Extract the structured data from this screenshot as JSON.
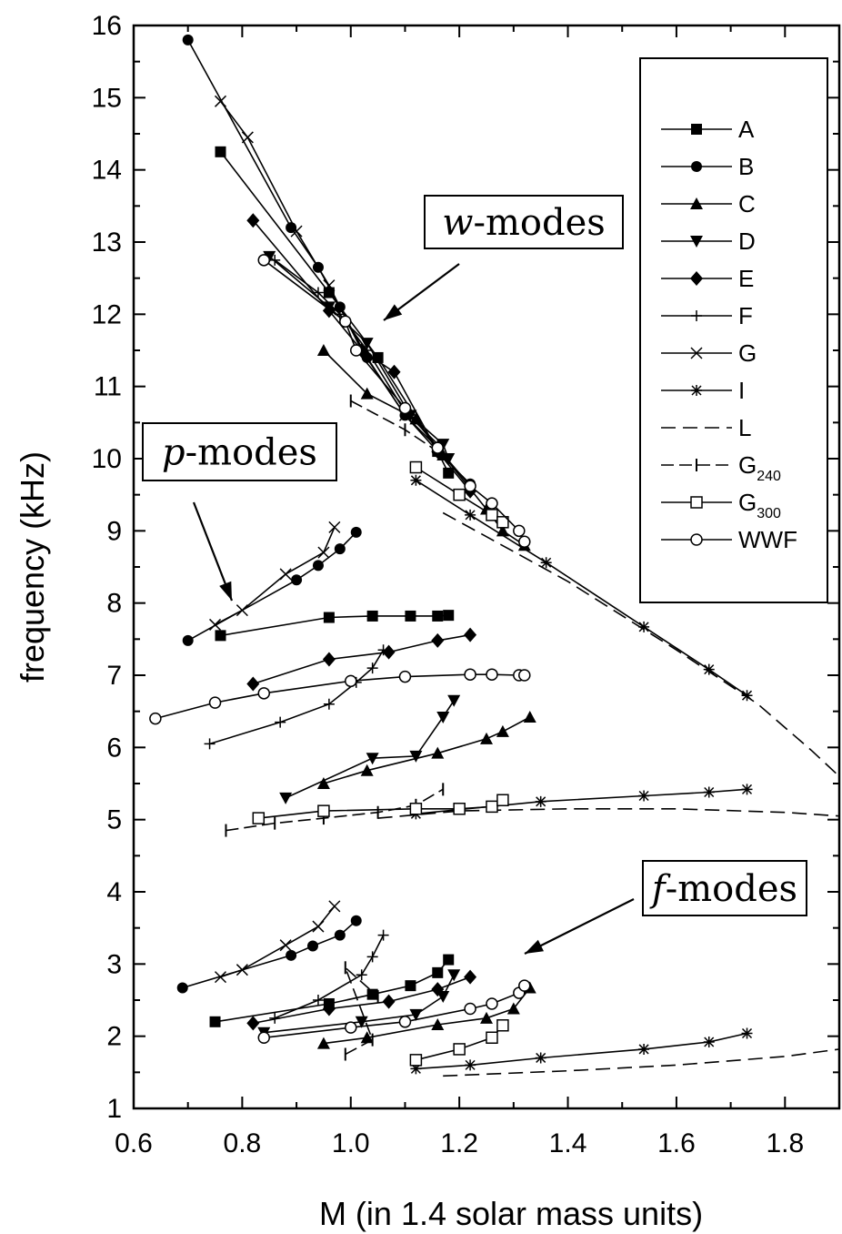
{
  "chart_data": {
    "type": "line",
    "xlabel": "M (in 1.4 solar mass units)",
    "ylabel": "frequency (kHz)",
    "xlim": [
      0.6,
      1.9
    ],
    "ylim": [
      1,
      16
    ],
    "xticks": [
      "0.6",
      "0.8",
      "1.0",
      "1.2",
      "1.4",
      "1.6",
      "1.8"
    ],
    "yticks": [
      "1",
      "2",
      "3",
      "4",
      "5",
      "6",
      "7",
      "8",
      "9",
      "10",
      "11",
      "12",
      "13",
      "14",
      "15",
      "16"
    ],
    "grid": false,
    "legend_position": "top-right",
    "legend": [
      {
        "label": "A",
        "marker": "square-filled"
      },
      {
        "label": "B",
        "marker": "circle-filled"
      },
      {
        "label": "C",
        "marker": "triangle-up-filled"
      },
      {
        "label": "D",
        "marker": "triangle-down-filled"
      },
      {
        "label": "E",
        "marker": "diamond-filled"
      },
      {
        "label": "F",
        "marker": "plus"
      },
      {
        "label": "G",
        "marker": "cross"
      },
      {
        "label": "I",
        "marker": "asterisk"
      },
      {
        "label": "L",
        "marker": "none"
      },
      {
        "label": "G",
        "sub": "240",
        "marker": "vbar"
      },
      {
        "label": "G",
        "sub": "300",
        "marker": "square-open"
      },
      {
        "label": "WWF",
        "marker": "circle-open"
      }
    ],
    "annotations": [
      {
        "label": "w",
        "suffix": "-modes"
      },
      {
        "label": "p",
        "suffix": "-modes"
      },
      {
        "label": "f",
        "suffix": "-modes"
      }
    ],
    "series": [
      {
        "name": "A",
        "marker": "square-filled",
        "curves": [
          [
            [
              0.76,
              14.25
            ],
            [
              0.96,
              12.3
            ],
            [
              1.05,
              11.4
            ],
            [
              1.16,
              10.1
            ],
            [
              1.18,
              9.8
            ]
          ],
          [
            [
              0.76,
              7.55
            ],
            [
              0.96,
              7.8
            ],
            [
              1.04,
              7.82
            ],
            [
              1.11,
              7.82
            ],
            [
              1.16,
              7.82
            ],
            [
              1.18,
              7.83
            ]
          ],
          [
            [
              0.75,
              2.2
            ],
            [
              0.96,
              2.45
            ],
            [
              1.04,
              2.58
            ],
            [
              1.11,
              2.7
            ],
            [
              1.16,
              2.88
            ],
            [
              1.18,
              3.06
            ]
          ]
        ]
      },
      {
        "name": "B",
        "marker": "circle-filled",
        "curves": [
          [
            [
              0.7,
              15.8
            ],
            [
              0.89,
              13.2
            ],
            [
              0.94,
              12.65
            ],
            [
              0.98,
              12.1
            ],
            [
              1.03,
              11.4
            ],
            [
              1.1,
              10.6
            ],
            [
              1.16,
              10.1
            ],
            [
              1.22,
              9.65
            ]
          ],
          [
            [
              0.7,
              7.48
            ],
            [
              0.9,
              8.32
            ],
            [
              0.94,
              8.52
            ],
            [
              0.98,
              8.75
            ],
            [
              1.01,
              8.98
            ]
          ],
          [
            [
              0.69,
              2.67
            ],
            [
              0.89,
              3.12
            ],
            [
              0.93,
              3.25
            ],
            [
              0.98,
              3.4
            ],
            [
              1.01,
              3.6
            ]
          ]
        ]
      },
      {
        "name": "C",
        "marker": "triangle-up-filled",
        "curves": [
          [
            [
              0.95,
              11.5
            ],
            [
              1.03,
              10.9
            ],
            [
              1.12,
              10.55
            ],
            [
              1.17,
              10.05
            ],
            [
              1.25,
              9.3
            ],
            [
              1.28,
              9.0
            ],
            [
              1.32,
              8.8
            ]
          ],
          [
            [
              0.95,
              5.5
            ],
            [
              1.03,
              5.68
            ],
            [
              1.16,
              5.92
            ],
            [
              1.25,
              6.12
            ],
            [
              1.28,
              6.22
            ],
            [
              1.33,
              6.42
            ]
          ],
          [
            [
              0.95,
              1.9
            ],
            [
              1.03,
              1.98
            ],
            [
              1.16,
              2.16
            ],
            [
              1.25,
              2.25
            ],
            [
              1.3,
              2.38
            ],
            [
              1.33,
              2.67
            ]
          ]
        ]
      },
      {
        "name": "D",
        "marker": "triangle-down-filled",
        "curves": [
          [
            [
              0.85,
              12.8
            ],
            [
              0.96,
              12.1
            ],
            [
              1.03,
              11.6
            ],
            [
              1.11,
              10.6
            ],
            [
              1.17,
              10.2
            ],
            [
              1.18,
              10.0
            ]
          ],
          [
            [
              0.88,
              5.3
            ],
            [
              1.04,
              5.85
            ],
            [
              1.12,
              5.88
            ],
            [
              1.17,
              6.42
            ],
            [
              1.19,
              6.65
            ]
          ],
          [
            [
              0.84,
              2.05
            ],
            [
              1.02,
              2.2
            ],
            [
              1.12,
              2.3
            ],
            [
              1.17,
              2.55
            ],
            [
              1.19,
              2.85
            ]
          ]
        ]
      },
      {
        "name": "E",
        "marker": "diamond-filled",
        "curves": [
          [
            [
              0.82,
              13.3
            ],
            [
              0.96,
              12.05
            ],
            [
              1.02,
              11.5
            ],
            [
              1.08,
              11.2
            ],
            [
              1.16,
              10.1
            ],
            [
              1.22,
              9.55
            ]
          ],
          [
            [
              0.82,
              6.88
            ],
            [
              0.96,
              7.22
            ],
            [
              1.07,
              7.32
            ],
            [
              1.16,
              7.48
            ],
            [
              1.22,
              7.56
            ]
          ],
          [
            [
              0.82,
              2.18
            ],
            [
              0.96,
              2.38
            ],
            [
              1.07,
              2.48
            ],
            [
              1.16,
              2.65
            ],
            [
              1.22,
              2.82
            ]
          ]
        ]
      },
      {
        "name": "F",
        "marker": "plus",
        "curves": [
          [
            [
              0.86,
              12.75
            ],
            [
              0.94,
              12.3
            ],
            [
              0.98,
              12.0
            ],
            [
              1.03,
              11.5
            ],
            [
              1.1,
              10.65
            ],
            [
              1.16,
              10.2
            ]
          ],
          [
            [
              0.74,
              6.05
            ],
            [
              0.87,
              6.35
            ],
            [
              0.96,
              6.6
            ],
            [
              1.01,
              6.9
            ],
            [
              1.04,
              7.1
            ],
            [
              1.06,
              7.35
            ]
          ],
          [
            [
              0.86,
              2.25
            ],
            [
              0.94,
              2.5
            ],
            [
              1.02,
              2.85
            ],
            [
              1.04,
              3.1
            ],
            [
              1.06,
              3.4
            ]
          ]
        ]
      },
      {
        "name": "G",
        "marker": "cross",
        "curves": [
          [
            [
              0.76,
              14.95
            ],
            [
              0.81,
              14.45
            ],
            [
              0.9,
              13.15
            ],
            [
              0.96,
              12.4
            ],
            [
              1.02,
              11.5
            ],
            [
              1.1,
              10.6
            ],
            [
              1.16,
              10.15
            ]
          ],
          [
            [
              0.75,
              7.7
            ],
            [
              0.8,
              7.9
            ],
            [
              0.88,
              8.4
            ],
            [
              0.95,
              8.7
            ],
            [
              0.97,
              9.05
            ]
          ],
          [
            [
              0.76,
              2.82
            ],
            [
              0.8,
              2.92
            ],
            [
              0.88,
              3.26
            ],
            [
              0.94,
              3.52
            ],
            [
              0.97,
              3.8
            ]
          ]
        ]
      },
      {
        "name": "I",
        "marker": "asterisk",
        "curves": [
          [
            [
              1.12,
              9.7
            ],
            [
              1.22,
              9.22
            ],
            [
              1.36,
              8.56
            ],
            [
              1.54,
              7.67
            ],
            [
              1.66,
              7.08
            ],
            [
              1.73,
              6.72
            ]
          ],
          [
            [
              1.12,
              5.08
            ],
            [
              1.35,
              5.25
            ],
            [
              1.54,
              5.33
            ],
            [
              1.66,
              5.38
            ],
            [
              1.73,
              5.42
            ]
          ],
          [
            [
              1.12,
              1.55
            ],
            [
              1.22,
              1.6
            ],
            [
              1.35,
              1.7
            ],
            [
              1.54,
              1.82
            ],
            [
              1.66,
              1.92
            ],
            [
              1.73,
              2.04
            ]
          ]
        ]
      },
      {
        "name": "L",
        "marker": "none",
        "curves": [
          [
            [
              1.17,
              9.25
            ],
            [
              1.4,
              8.3
            ],
            [
              1.6,
              7.35
            ],
            [
              1.75,
              6.6
            ],
            [
              1.85,
              5.95
            ],
            [
              1.9,
              5.6
            ]
          ],
          [
            [
              1.05,
              5.02
            ],
            [
              1.2,
              5.12
            ],
            [
              1.4,
              5.15
            ],
            [
              1.6,
              5.15
            ],
            [
              1.8,
              5.1
            ],
            [
              1.9,
              5.05
            ]
          ],
          [
            [
              1.17,
              1.45
            ],
            [
              1.4,
              1.52
            ],
            [
              1.6,
              1.6
            ],
            [
              1.8,
              1.72
            ],
            [
              1.9,
              1.82
            ]
          ]
        ]
      },
      {
        "name": "G240",
        "marker": "vbar",
        "curves": [
          [
            [
              1.0,
              10.8
            ],
            [
              1.1,
              10.4
            ],
            [
              1.16,
              10.1
            ]
          ],
          [
            [
              0.77,
              4.85
            ],
            [
              0.86,
              4.95
            ],
            [
              0.95,
              5.02
            ],
            [
              1.05,
              5.1
            ],
            [
              1.12,
              5.2
            ],
            [
              1.17,
              5.42
            ]
          ],
          [
            [
              0.99,
              1.75
            ],
            [
              1.04,
              1.95
            ],
            [
              0.99,
              2.95
            ],
            [
              1.05,
              2.55
            ]
          ]
        ]
      },
      {
        "name": "G300",
        "marker": "square-open",
        "curves": [
          [
            [
              1.12,
              9.88
            ],
            [
              1.2,
              9.5
            ],
            [
              1.26,
              9.22
            ],
            [
              1.28,
              9.12
            ]
          ],
          [
            [
              0.83,
              5.02
            ],
            [
              0.95,
              5.12
            ],
            [
              1.12,
              5.15
            ],
            [
              1.2,
              5.15
            ],
            [
              1.26,
              5.18
            ],
            [
              1.28,
              5.27
            ]
          ],
          [
            [
              1.12,
              1.67
            ],
            [
              1.2,
              1.82
            ],
            [
              1.26,
              1.98
            ],
            [
              1.28,
              2.15
            ]
          ]
        ]
      },
      {
        "name": "WWF",
        "marker": "circle-open",
        "curves": [
          [
            [
              0.84,
              12.75
            ],
            [
              0.99,
              11.9
            ],
            [
              1.01,
              11.5
            ],
            [
              1.1,
              10.7
            ],
            [
              1.16,
              10.15
            ],
            [
              1.22,
              9.62
            ],
            [
              1.26,
              9.38
            ],
            [
              1.31,
              9.0
            ],
            [
              1.32,
              8.85
            ]
          ],
          [
            [
              0.64,
              6.4
            ],
            [
              0.75,
              6.62
            ],
            [
              0.84,
              6.75
            ],
            [
              1.0,
              6.92
            ],
            [
              1.1,
              6.98
            ],
            [
              1.22,
              7.01
            ],
            [
              1.26,
              7.01
            ],
            [
              1.31,
              7.0
            ],
            [
              1.32,
              7.0
            ]
          ],
          [
            [
              0.84,
              1.98
            ],
            [
              1.0,
              2.12
            ],
            [
              1.1,
              2.2
            ],
            [
              1.22,
              2.38
            ],
            [
              1.26,
              2.45
            ],
            [
              1.31,
              2.6
            ],
            [
              1.32,
              2.7
            ]
          ]
        ]
      }
    ]
  }
}
